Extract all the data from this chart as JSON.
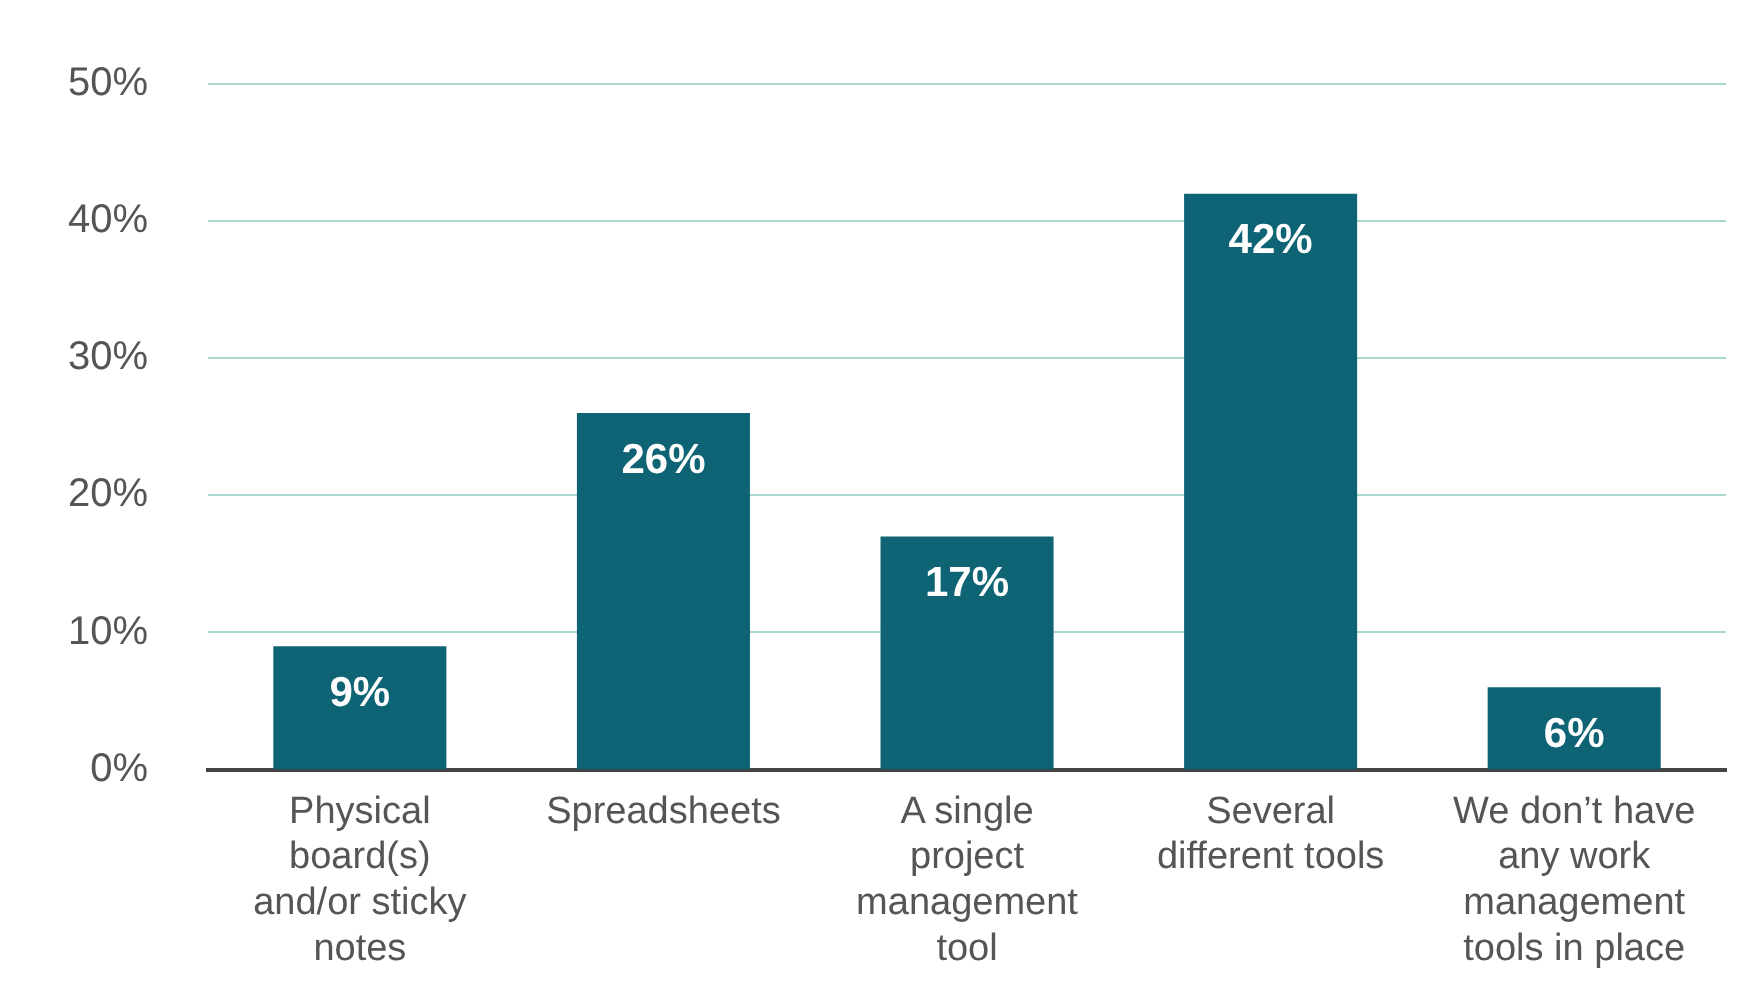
{
  "chart_data": {
    "type": "bar",
    "categories": [
      "Physical board(s) and/or sticky notes",
      "Spreadsheets",
      "A single project management tool",
      "Several different tools",
      "We don’t have any work management tools in place"
    ],
    "values": [
      9,
      26,
      17,
      42,
      6
    ],
    "value_labels": [
      "9%",
      "26%",
      "17%",
      "42%",
      "6%"
    ],
    "color": "#0e6474",
    "ylim": [
      0,
      50
    ],
    "yticks": [
      {
        "value": 0,
        "label": "0%"
      },
      {
        "value": 10,
        "label": "10%"
      },
      {
        "value": 20,
        "label": "20%"
      },
      {
        "value": 30,
        "label": "30%"
      },
      {
        "value": 40,
        "label": "40%"
      },
      {
        "value": 50,
        "label": "50%"
      }
    ],
    "grid": "y"
  }
}
